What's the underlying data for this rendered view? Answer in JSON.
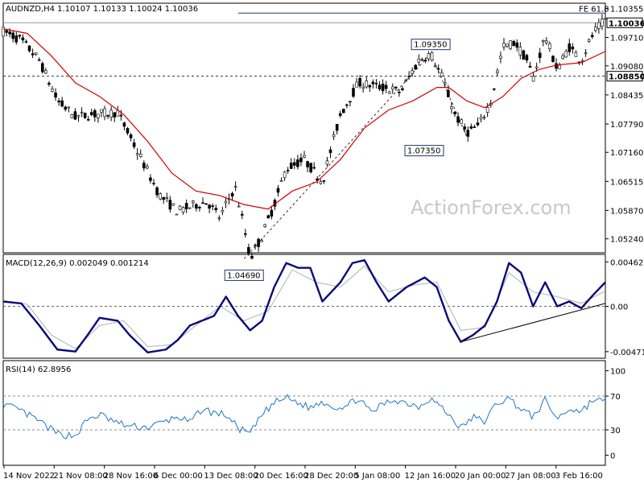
{
  "chart_data": [
    {
      "type": "candlestick",
      "title": "AUDNZD,H4  1.10107 1.10133 1.10024 1.10036",
      "watermark": "ActionForex.com",
      "ylim": [
        1.0493,
        1.1047
      ],
      "y_ticks": [
        1.10355,
        1.0971,
        1.0908,
        1.08435,
        1.0779,
        1.0716,
        1.06515,
        1.0587,
        1.0524
      ],
      "y_tick_labels": [
        "1.10355",
        "1.09710",
        "1.09080",
        "1.08435",
        "1.07790",
        "1.07160",
        "1.06515",
        "1.05870",
        "1.05240"
      ],
      "x_tick_labels": [
        "14 Nov 2022",
        "21 Nov 08:00",
        "28 Nov 16:00",
        "6 Dec 00:00",
        "13 Dec 08:00",
        "20 Dec 16:00",
        "28 Dec 20:00",
        "5 Jan 08:00",
        "12 Jan 16:00",
        "20 Jan 00:00",
        "27 Jan 08:00",
        "3 Feb 16:00"
      ],
      "price_path": [
        [
          0,
          1.0985
        ],
        [
          0.03,
          1.0965
        ],
        [
          0.06,
          1.092
        ],
        [
          0.09,
          1.083
        ],
        [
          0.12,
          1.0795
        ],
        [
          0.15,
          1.08
        ],
        [
          0.19,
          1.0805
        ],
        [
          0.22,
          1.0725
        ],
        [
          0.26,
          1.062
        ],
        [
          0.29,
          1.0585
        ],
        [
          0.32,
          1.06
        ],
        [
          0.34,
          1.0605
        ],
        [
          0.36,
          1.057
        ],
        [
          0.37,
          1.06
        ],
        [
          0.385,
          1.064
        ],
        [
          0.4,
          1.055
        ],
        [
          0.41,
          1.048
        ],
        [
          0.43,
          1.053
        ],
        [
          0.45,
          1.06
        ],
        [
          0.47,
          1.068
        ],
        [
          0.5,
          1.07
        ],
        [
          0.53,
          1.065
        ],
        [
          0.56,
          1.08
        ],
        [
          0.59,
          1.087
        ],
        [
          0.63,
          1.086
        ],
        [
          0.66,
          1.085
        ],
        [
          0.69,
          1.092
        ],
        [
          0.71,
          1.0935
        ],
        [
          0.73,
          1.088
        ],
        [
          0.75,
          1.08
        ],
        [
          0.77,
          1.076
        ],
        [
          0.79,
          1.0775
        ],
        [
          0.81,
          1.083
        ],
        [
          0.83,
          1.095
        ],
        [
          0.85,
          1.096
        ],
        [
          0.87,
          1.092
        ],
        [
          0.88,
          1.088
        ],
        [
          0.9,
          1.0975
        ],
        [
          0.92,
          1.09
        ],
        [
          0.94,
          1.095
        ],
        [
          0.96,
          1.092
        ],
        [
          0.98,
          1.098
        ],
        [
          1.0,
          1.101
        ]
      ],
      "ma_path": [
        [
          0,
          1.099
        ],
        [
          0.04,
          1.098
        ],
        [
          0.08,
          1.093
        ],
        [
          0.12,
          1.087
        ],
        [
          0.16,
          1.084
        ],
        [
          0.2,
          1.08
        ],
        [
          0.24,
          1.074
        ],
        [
          0.28,
          1.067
        ],
        [
          0.32,
          1.063
        ],
        [
          0.36,
          1.062
        ],
        [
          0.4,
          1.06
        ],
        [
          0.44,
          1.059
        ],
        [
          0.48,
          1.063
        ],
        [
          0.52,
          1.065
        ],
        [
          0.56,
          1.07
        ],
        [
          0.6,
          1.077
        ],
        [
          0.64,
          1.081
        ],
        [
          0.68,
          1.083
        ],
        [
          0.72,
          1.086
        ],
        [
          0.74,
          1.086
        ],
        [
          0.77,
          1.083
        ],
        [
          0.8,
          1.0815
        ],
        [
          0.83,
          1.084
        ],
        [
          0.86,
          1.088
        ],
        [
          0.89,
          1.09
        ],
        [
          0.92,
          1.091
        ],
        [
          0.96,
          1.0915
        ],
        [
          1.0,
          1.094
        ]
      ],
      "horizontal_levels": [
        {
          "price": 1.0885,
          "label": "1.08850",
          "style": "dashed"
        },
        {
          "price": 1.10036,
          "label": "1.10036",
          "style": "solid-gray"
        },
        {
          "price": 1.1025,
          "label": "FE 61.8",
          "style": "solid-navy"
        }
      ],
      "annotations": [
        {
          "label": "1.04690",
          "x": 0.4,
          "price": 1.0469
        },
        {
          "label": "1.09350",
          "x": 0.71,
          "price": 1.0935
        },
        {
          "label": "1.07350",
          "x": 0.75,
          "price": 1.0735
        }
      ],
      "trendlines": [
        {
          "x1": 0.4,
          "p1": 1.048,
          "x2": 0.71,
          "p2": 1.0935,
          "style": "dashed"
        },
        {
          "x1": 0.71,
          "p1": 1.0935,
          "x2": 0.77,
          "p2": 1.075,
          "style": "dashed"
        }
      ]
    },
    {
      "type": "line",
      "title": "MACD(12,26,9) 0.002049 0.001214",
      "ylim": [
        -0.0054,
        0.0054
      ],
      "y_ticks": [
        0.004621,
        0.0,
        -0.004715
      ],
      "y_tick_labels": [
        "0.004621",
        "0.00",
        "-0.004715"
      ],
      "macd_path": [
        [
          0,
          0.0005
        ],
        [
          0.03,
          0.0003
        ],
        [
          0.06,
          -0.002
        ],
        [
          0.09,
          -0.0045
        ],
        [
          0.12,
          -0.0047
        ],
        [
          0.14,
          -0.003
        ],
        [
          0.16,
          -0.0012
        ],
        [
          0.19,
          -0.0015
        ],
        [
          0.21,
          -0.003
        ],
        [
          0.24,
          -0.0048
        ],
        [
          0.27,
          -0.0045
        ],
        [
          0.29,
          -0.0035
        ],
        [
          0.31,
          -0.002
        ],
        [
          0.33,
          -0.0015
        ],
        [
          0.35,
          -0.001
        ],
        [
          0.37,
          0.001
        ],
        [
          0.39,
          -0.001
        ],
        [
          0.41,
          -0.0025
        ],
        [
          0.43,
          -0.0015
        ],
        [
          0.45,
          0.002
        ],
        [
          0.47,
          0.0045
        ],
        [
          0.49,
          0.004
        ],
        [
          0.51,
          0.004
        ],
        [
          0.53,
          0.0005
        ],
        [
          0.56,
          0.0025
        ],
        [
          0.58,
          0.0045
        ],
        [
          0.6,
          0.0048
        ],
        [
          0.62,
          0.0025
        ],
        [
          0.64,
          0.0005
        ],
        [
          0.67,
          0.002
        ],
        [
          0.7,
          0.003
        ],
        [
          0.72,
          0.002
        ],
        [
          0.74,
          -0.0015
        ],
        [
          0.76,
          -0.0037
        ],
        [
          0.78,
          -0.003
        ],
        [
          0.8,
          -0.002
        ],
        [
          0.82,
          0.0005
        ],
        [
          0.84,
          0.0045
        ],
        [
          0.86,
          0.0035
        ],
        [
          0.88,
          0.0
        ],
        [
          0.9,
          0.0025
        ],
        [
          0.92,
          0.0
        ],
        [
          0.94,
          0.0005
        ],
        [
          0.96,
          -0.0002
        ],
        [
          0.98,
          0.0012
        ],
        [
          1.0,
          0.0025
        ]
      ],
      "signal_path": [
        [
          0,
          0.0006
        ],
        [
          0.04,
          0.0002
        ],
        [
          0.08,
          -0.003
        ],
        [
          0.12,
          -0.0044
        ],
        [
          0.16,
          -0.002
        ],
        [
          0.2,
          -0.0015
        ],
        [
          0.24,
          -0.0042
        ],
        [
          0.28,
          -0.004
        ],
        [
          0.32,
          -0.002
        ],
        [
          0.36,
          0.0
        ],
        [
          0.4,
          -0.0015
        ],
        [
          0.44,
          -0.0005
        ],
        [
          0.48,
          0.0038
        ],
        [
          0.52,
          0.0025
        ],
        [
          0.56,
          0.002
        ],
        [
          0.6,
          0.0042
        ],
        [
          0.64,
          0.0015
        ],
        [
          0.68,
          0.0022
        ],
        [
          0.72,
          0.0025
        ],
        [
          0.76,
          -0.0025
        ],
        [
          0.8,
          -0.0022
        ],
        [
          0.84,
          0.0035
        ],
        [
          0.88,
          0.0015
        ],
        [
          0.92,
          0.001
        ],
        [
          0.96,
          0.0003
        ],
        [
          1.0,
          0.0016
        ]
      ],
      "trendline": {
        "x1": 0.76,
        "v1": -0.0037,
        "x2": 1.0,
        "v2": 0.0003
      }
    },
    {
      "type": "line",
      "title": "RSI(14) 62.8956",
      "ylim": [
        0,
        100
      ],
      "y_ticks": [
        100,
        70,
        30,
        0
      ],
      "y_tick_labels": [
        "100",
        "70",
        "30",
        "0"
      ],
      "levels": [
        70,
        30
      ],
      "rsi_path": [
        [
          0,
          60
        ],
        [
          0.03,
          52
        ],
        [
          0.06,
          40
        ],
        [
          0.09,
          25
        ],
        [
          0.12,
          23
        ],
        [
          0.14,
          42
        ],
        [
          0.16,
          48
        ],
        [
          0.19,
          38
        ],
        [
          0.21,
          34
        ],
        [
          0.24,
          33
        ],
        [
          0.27,
          40
        ],
        [
          0.29,
          46
        ],
        [
          0.31,
          38
        ],
        [
          0.33,
          55
        ],
        [
          0.35,
          50
        ],
        [
          0.37,
          48
        ],
        [
          0.39,
          32
        ],
        [
          0.41,
          25
        ],
        [
          0.43,
          48
        ],
        [
          0.45,
          62
        ],
        [
          0.47,
          68
        ],
        [
          0.49,
          62
        ],
        [
          0.51,
          56
        ],
        [
          0.53,
          64
        ],
        [
          0.55,
          57
        ],
        [
          0.57,
          58
        ],
        [
          0.59,
          68
        ],
        [
          0.61,
          50
        ],
        [
          0.63,
          60
        ],
        [
          0.65,
          66
        ],
        [
          0.67,
          62
        ],
        [
          0.69,
          58
        ],
        [
          0.71,
          68
        ],
        [
          0.73,
          55
        ],
        [
          0.75,
          40
        ],
        [
          0.76,
          32
        ],
        [
          0.78,
          45
        ],
        [
          0.8,
          40
        ],
        [
          0.82,
          62
        ],
        [
          0.84,
          67
        ],
        [
          0.86,
          55
        ],
        [
          0.88,
          45
        ],
        [
          0.9,
          65
        ],
        [
          0.92,
          43
        ],
        [
          0.94,
          55
        ],
        [
          0.96,
          52
        ],
        [
          0.98,
          66
        ],
        [
          1.0,
          63
        ]
      ]
    }
  ]
}
